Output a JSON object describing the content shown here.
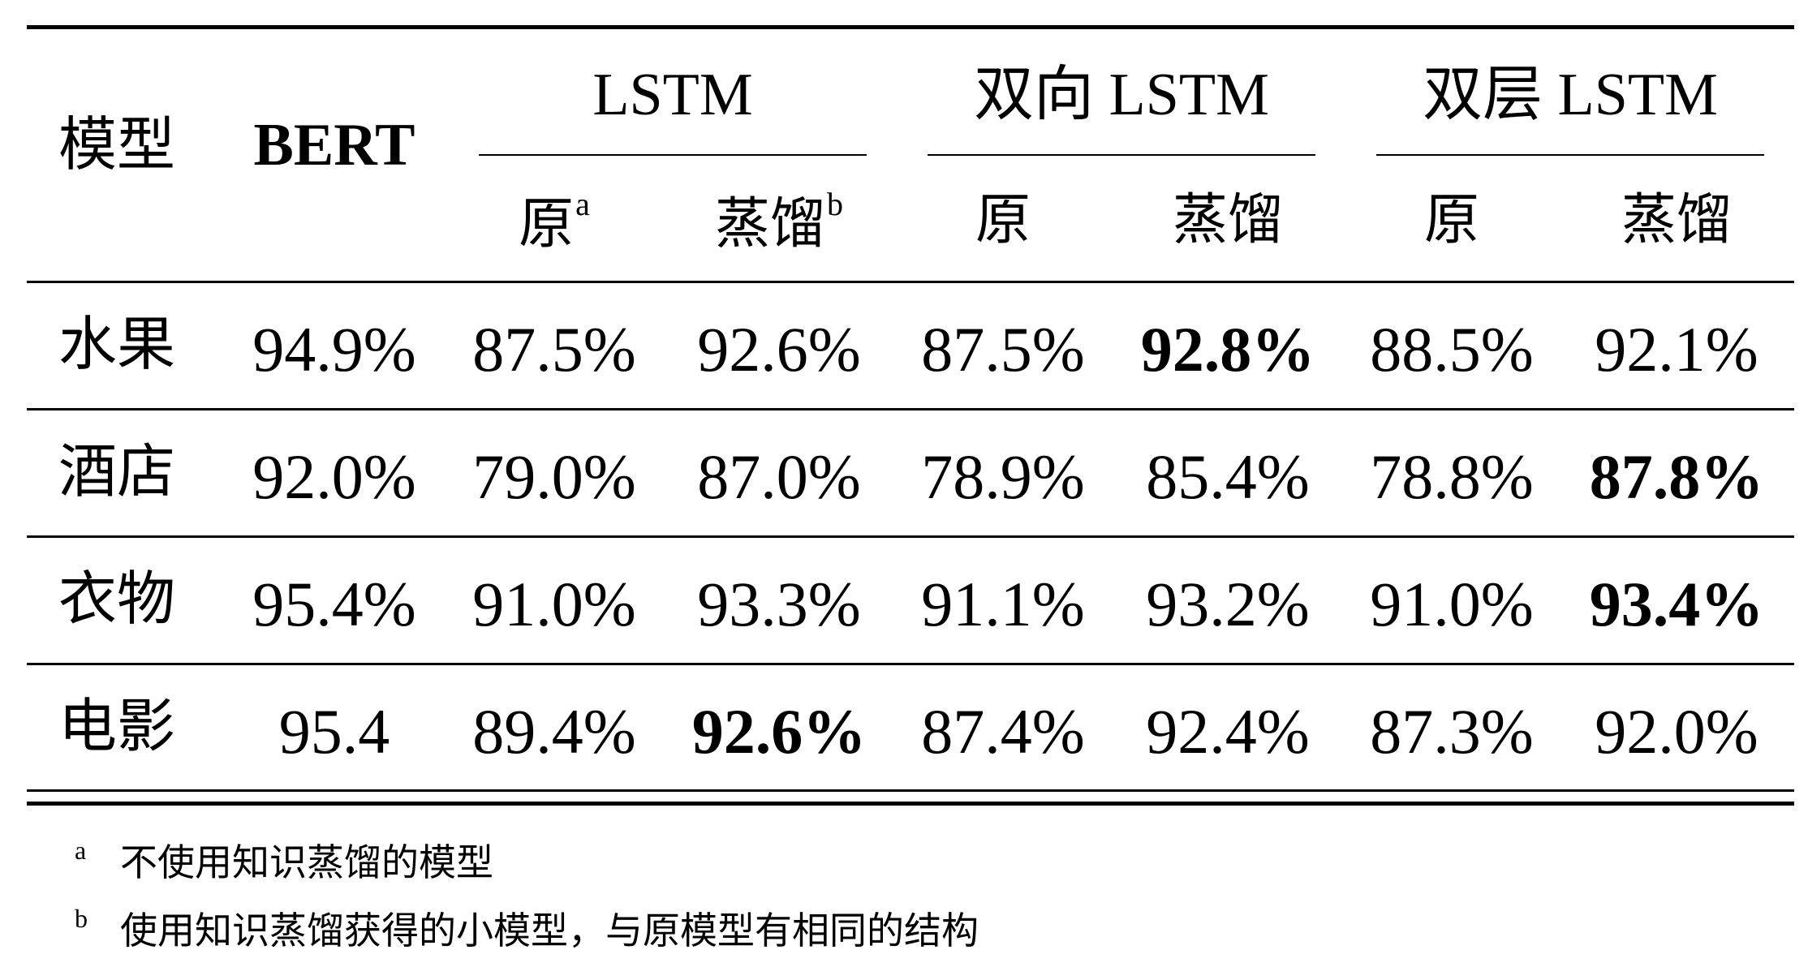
{
  "table": {
    "header": {
      "model": "模型",
      "bert": "BERT",
      "groups": [
        "LSTM",
        "双向 LSTM",
        "双层 LSTM"
      ],
      "orig": "原",
      "distill": "蒸馏",
      "mark_a": "a",
      "mark_b": "b"
    },
    "rows": [
      {
        "name": "水果",
        "values": [
          "94.9%",
          "87.5%",
          "92.6%",
          "87.5%",
          "92.8%",
          "88.5%",
          "92.1%"
        ],
        "bold": [
          4
        ]
      },
      {
        "name": "酒店",
        "values": [
          "92.0%",
          "79.0%",
          "87.0%",
          "78.9%",
          "85.4%",
          "78.8%",
          "87.8%"
        ],
        "bold": [
          6
        ]
      },
      {
        "name": "衣物",
        "values": [
          "95.4%",
          "91.0%",
          "93.3%",
          "91.1%",
          "93.2%",
          "91.0%",
          "93.4%"
        ],
        "bold": [
          6
        ]
      },
      {
        "name": "电影",
        "values": [
          "95.4",
          "89.4%",
          "92.6%",
          "87.4%",
          "92.4%",
          "87.3%",
          "92.0%"
        ],
        "bold": [
          2
        ]
      }
    ]
  },
  "footnotes": [
    {
      "mark": "a",
      "text": "不使用知识蒸馏的模型"
    },
    {
      "mark": "b",
      "text": "使用知识蒸馏获得的小模型，与原模型有相同的结构"
    }
  ]
}
